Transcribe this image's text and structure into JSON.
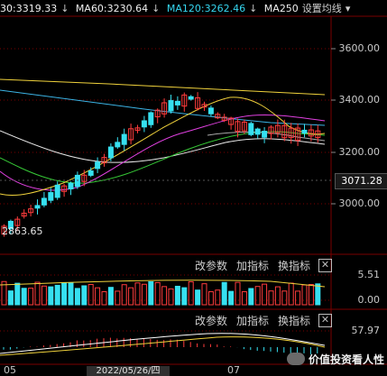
{
  "legend": {
    "ma30": "30:3319.33",
    "ma60": "MA60:3230.64",
    "ma120": "MA120:3262.46",
    "ma250": "MA250",
    "arrow": "↓",
    "settings": "设置均线",
    "dropdown": "▾"
  },
  "price_axis": {
    "ticks": [
      "3600.00",
      "3400.00",
      "3200.00",
      "3000.00"
    ],
    "current_price": "3071.28",
    "low_label": "2863.65"
  },
  "panel_buttons": {
    "params": "改参数",
    "add_indicator": "加指标",
    "switch_indicator": "换指标",
    "close": "✕"
  },
  "volume_axis": {
    "top": "5.51",
    "bottom": "0.00"
  },
  "indicator_axis": {
    "top": "57.97"
  },
  "x_axis": {
    "left_label": "05",
    "date_box": "2022/05/26/四",
    "mid_label": "07"
  },
  "watermark": {
    "text": "价值投资看人性"
  },
  "colors": {
    "up": "#ff3c3c",
    "down": "#36e0f0",
    "ma_yellow": "#f0d23c",
    "ma_magenta": "#e040e0",
    "ma_green": "#36c836",
    "ma_blue": "#3cb4e6",
    "ma_white": "#e8e8e8",
    "grid": "#7a0000"
  }
}
